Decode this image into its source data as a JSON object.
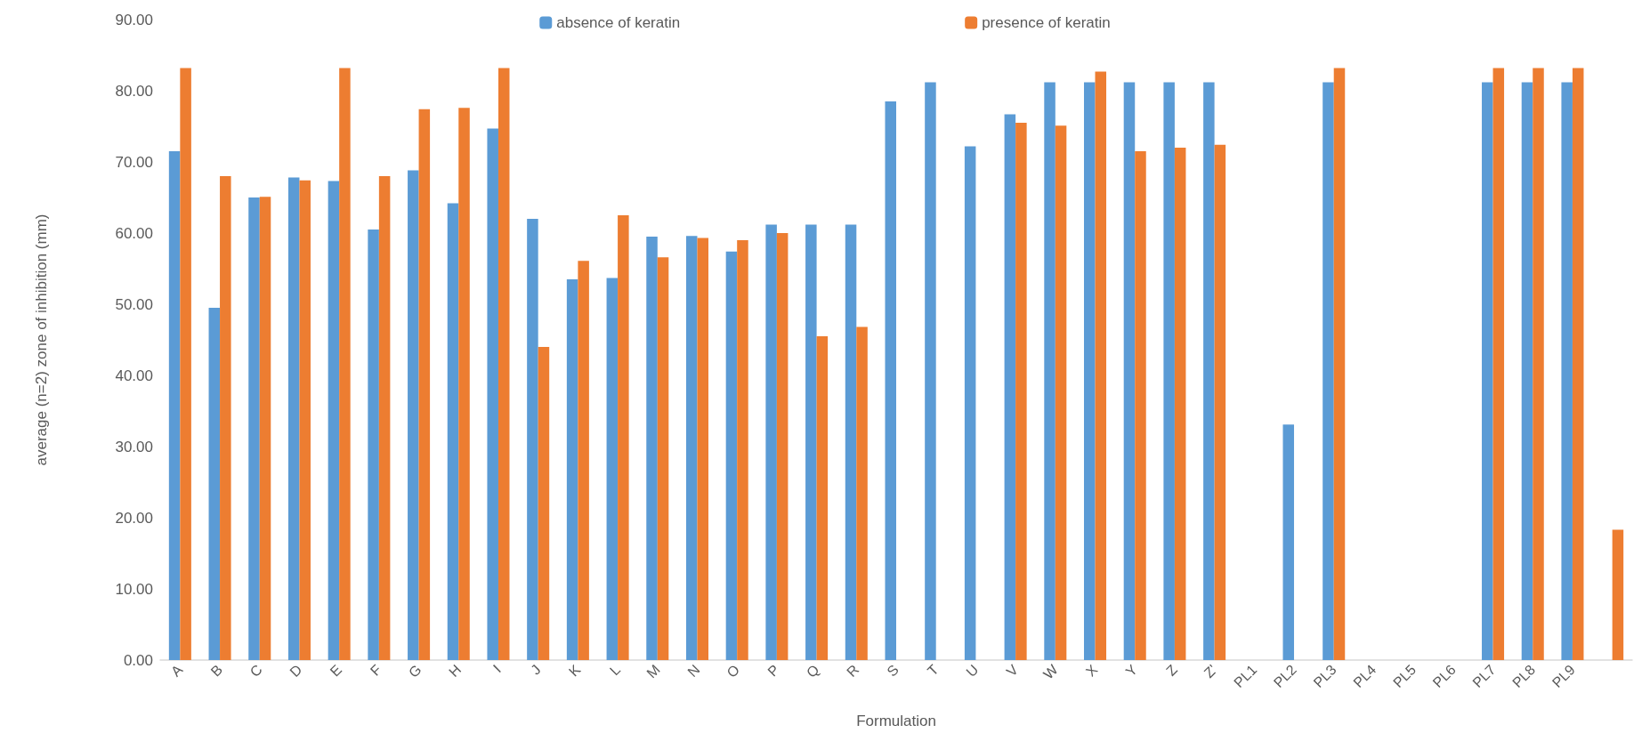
{
  "chart_data": {
    "type": "bar",
    "xlabel": "Formulation",
    "ylabel": "average (n=2) zone of inhibition (mm)",
    "categories": [
      "A",
      "B",
      "C",
      "D",
      "E",
      "F",
      "G",
      "H",
      "I",
      "J",
      "K",
      "L",
      "M",
      "N",
      "O",
      "P",
      "Q",
      "R",
      "S",
      "T",
      "U",
      "V",
      "W",
      "X",
      "Y",
      "Z",
      "Z'",
      "PL1",
      "PL2",
      "PL3",
      "PL4",
      "PL5",
      "PL6",
      "PL7",
      "PL8",
      "PL9",
      null
    ],
    "series": [
      {
        "name": "absence of keratin",
        "color": "#5b9bd5",
        "values": [
          71.5,
          49.5,
          65.0,
          67.8,
          67.3,
          60.5,
          68.8,
          64.2,
          74.7,
          62.0,
          53.5,
          53.7,
          59.5,
          59.6,
          57.4,
          61.2,
          61.2,
          61.2,
          78.5,
          81.2,
          72.2,
          76.7,
          81.2,
          81.2,
          81.2,
          81.2,
          81.2,
          null,
          33.1,
          81.2,
          null,
          null,
          null,
          81.2,
          81.2,
          81.2,
          null
        ]
      },
      {
        "name": "presence of keratin",
        "color": "#ed7d31",
        "values": [
          83.2,
          68.0,
          65.1,
          67.4,
          83.2,
          68.0,
          77.4,
          77.6,
          83.2,
          44.0,
          56.1,
          62.5,
          56.6,
          59.3,
          59.0,
          60.0,
          45.5,
          46.8,
          null,
          null,
          null,
          75.5,
          75.1,
          82.7,
          71.5,
          72.0,
          72.4,
          null,
          null,
          83.2,
          null,
          null,
          null,
          83.2,
          83.2,
          83.2,
          18.3
        ]
      }
    ],
    "ylim": [
      0,
      90
    ],
    "yticks": [
      {
        "value": 0,
        "label": "0.00"
      },
      {
        "value": 10,
        "label": "10.00"
      },
      {
        "value": 20,
        "label": "20.00"
      },
      {
        "value": 30,
        "label": "30.00"
      },
      {
        "value": 40,
        "label": "40.00"
      },
      {
        "value": 50,
        "label": "50.00"
      },
      {
        "value": 60,
        "label": "60.00"
      },
      {
        "value": 70,
        "label": "70.00"
      },
      {
        "value": 80,
        "label": "80.00"
      },
      {
        "value": 90,
        "label": "90.00"
      }
    ],
    "grid": false,
    "legend": "top"
  }
}
